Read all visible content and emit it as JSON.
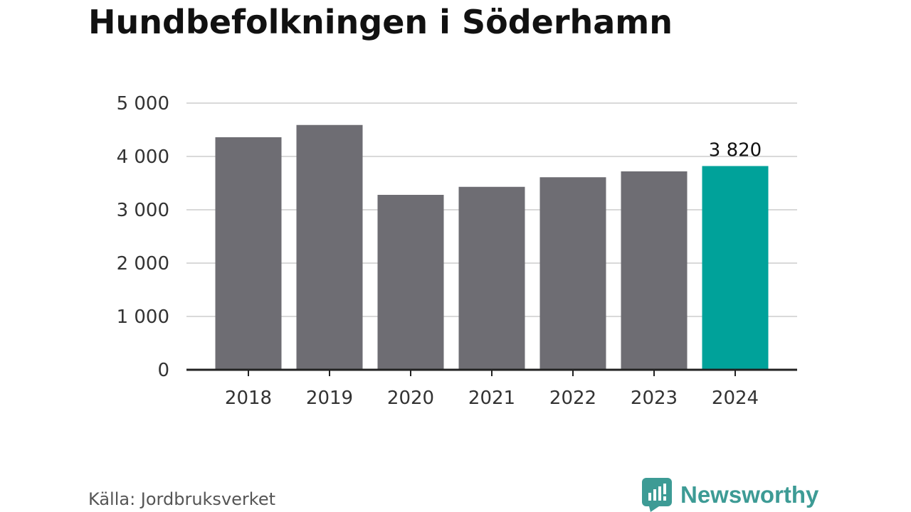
{
  "title": "Hundbefolkningen i Söderhamn",
  "source": "Källa: Jordbruksverket",
  "brand": {
    "name": "Newsworthy",
    "icon": "newsworthy-logo-icon",
    "color": "#3d9b95"
  },
  "colors": {
    "bar": "#6e6d73",
    "highlight": "#00a29a",
    "grid": "#d9d9d9",
    "axis": "#222222"
  },
  "chart_data": {
    "type": "bar",
    "title": "Hundbefolkningen i Söderhamn",
    "xlabel": "",
    "ylabel": "",
    "categories": [
      "2018",
      "2019",
      "2020",
      "2021",
      "2022",
      "2023",
      "2024"
    ],
    "values": [
      4360,
      4590,
      3280,
      3430,
      3610,
      3720,
      3820
    ],
    "highlight_index": 6,
    "data_labels": [
      {
        "index": 6,
        "text": "3 820"
      }
    ],
    "ylim": [
      0,
      5000
    ],
    "yticks": [
      0,
      1000,
      2000,
      3000,
      4000,
      5000
    ],
    "ytick_labels": [
      "0",
      "1 000",
      "2 000",
      "3 000",
      "4 000",
      "5 000"
    ],
    "grid": true,
    "legend": "none"
  }
}
